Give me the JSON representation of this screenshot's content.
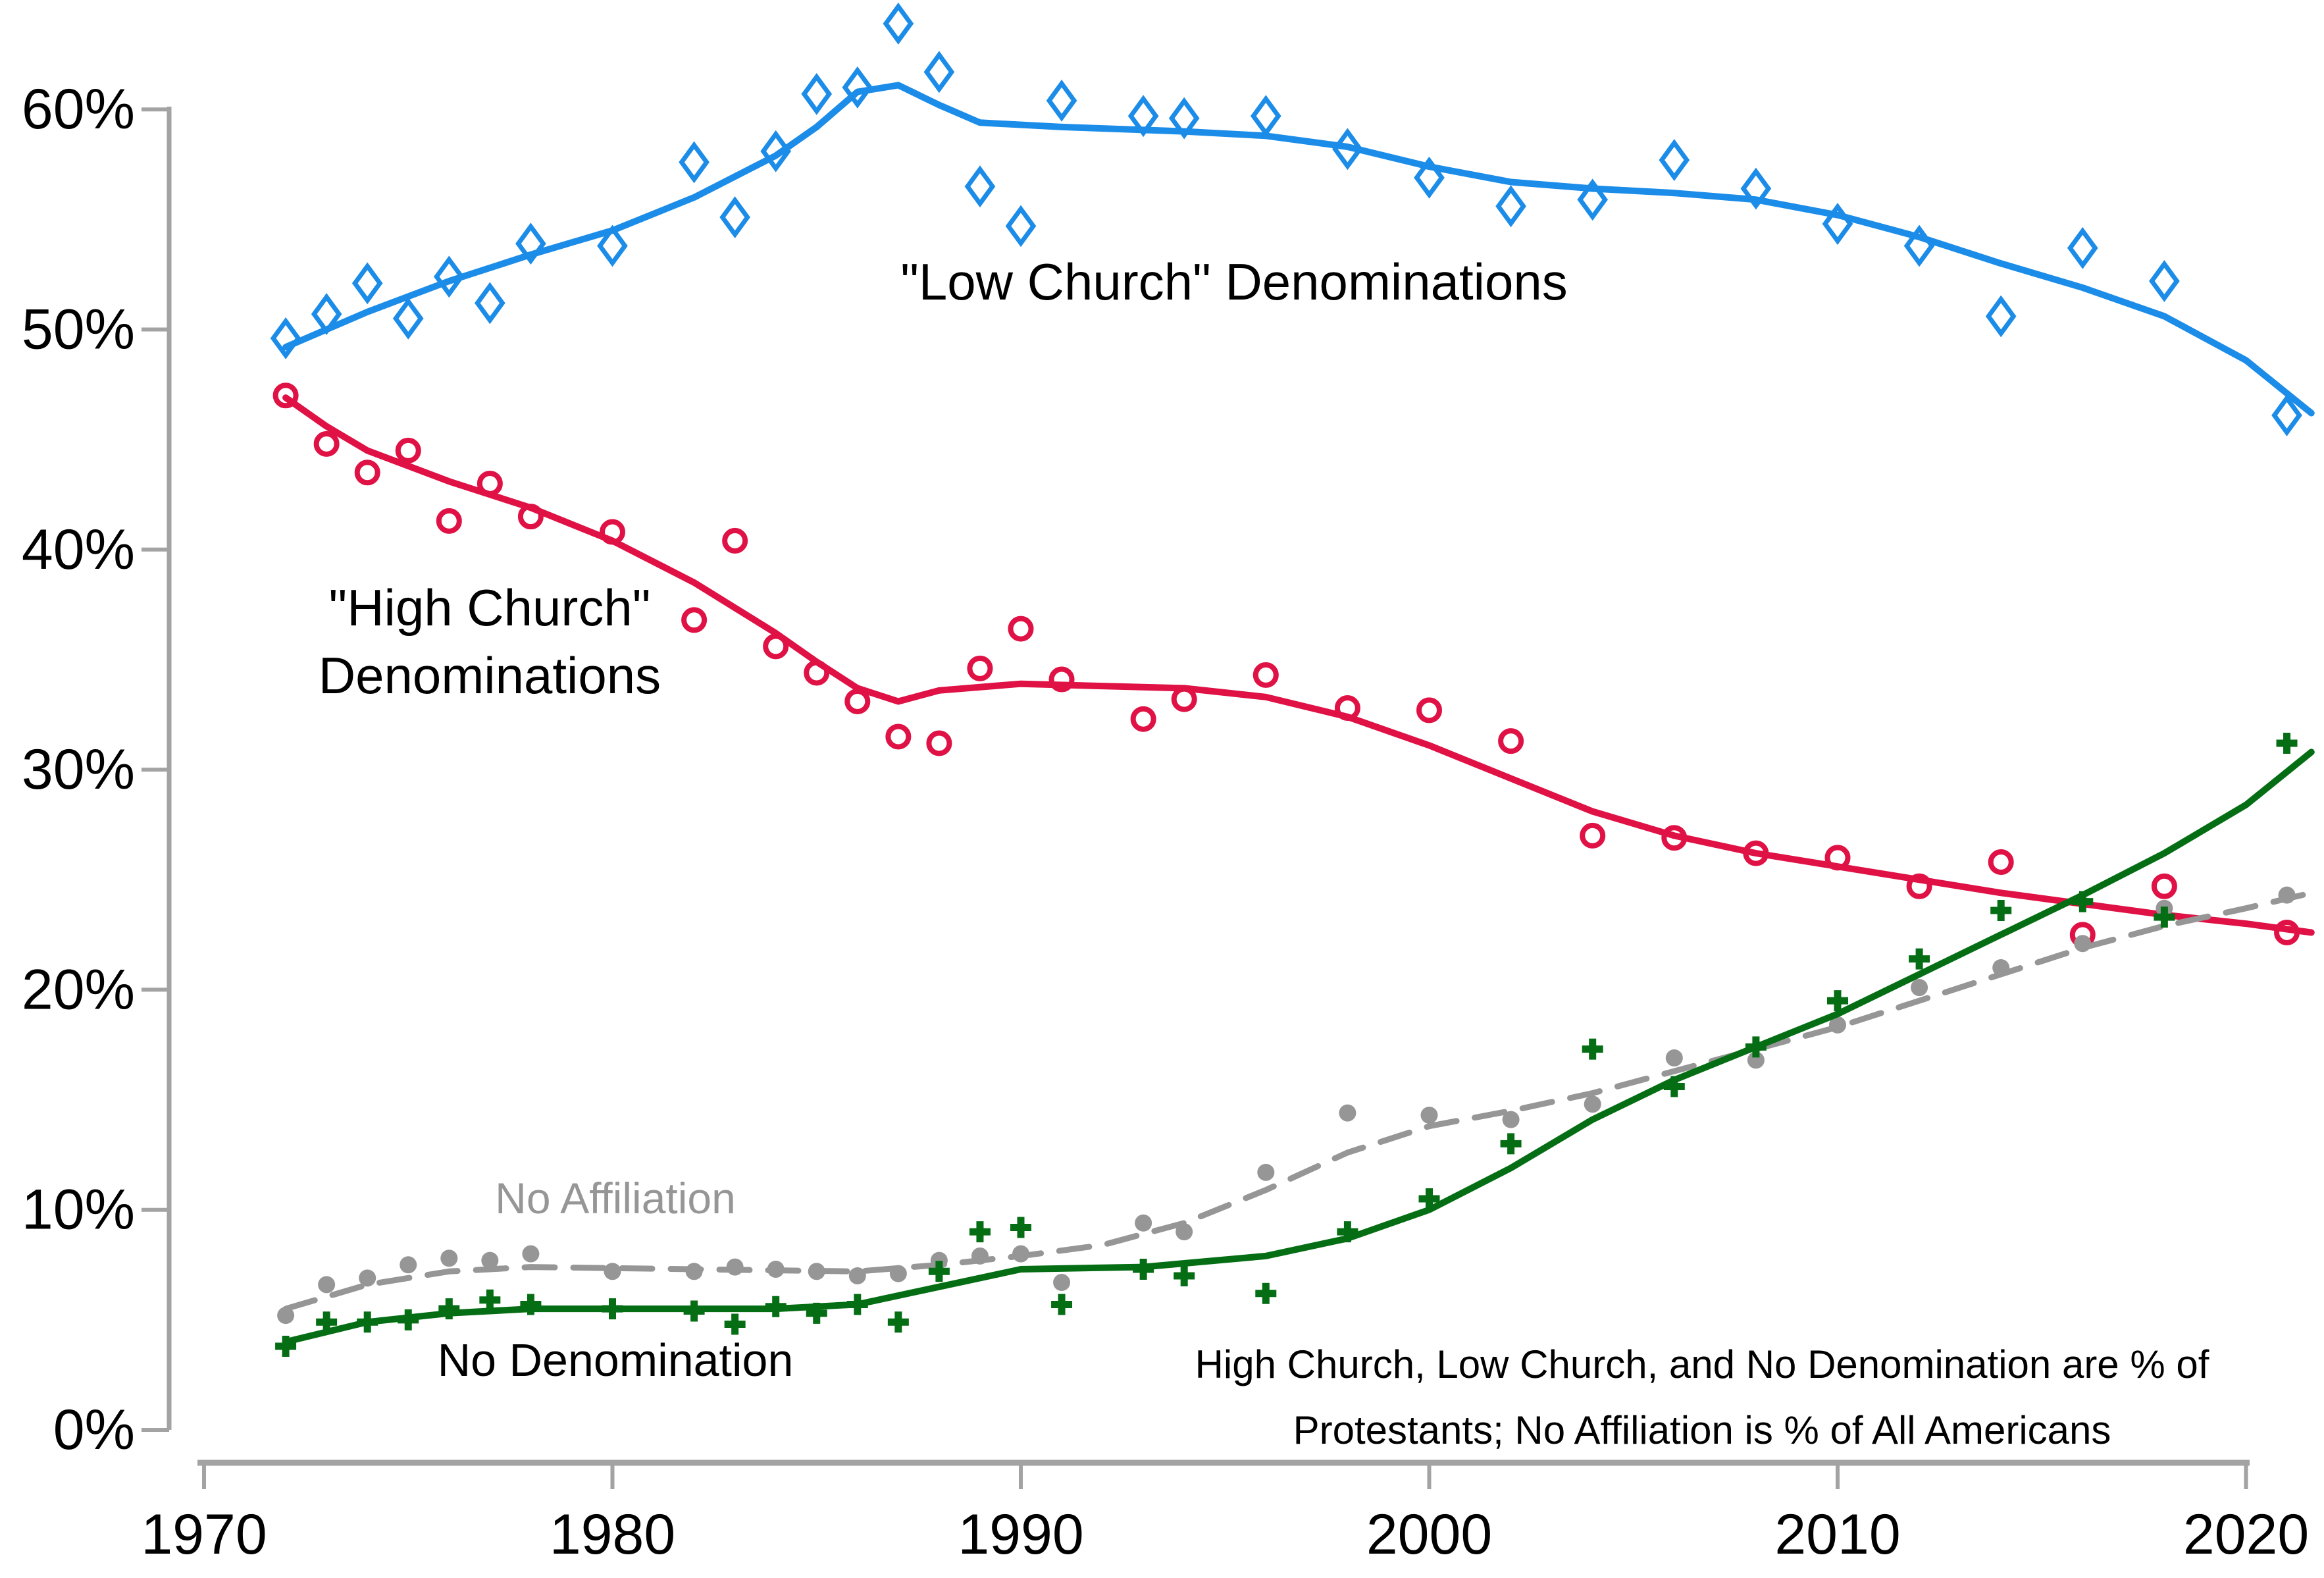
{
  "page": {
    "background": "#ffffff"
  },
  "chart_data": {
    "type": "scatter",
    "title": "",
    "subtitle": "",
    "grid": "off",
    "legend": "none (direct labels inside plot)",
    "x_axis": {
      "label": "",
      "min": 1969,
      "max": 2022,
      "ticks": [
        1970,
        1980,
        1990,
        2000,
        2010,
        2020
      ],
      "tick_labels": [
        "1970",
        "1980",
        "1990",
        "2000",
        "2010",
        "2020"
      ]
    },
    "y_axis": {
      "label": "",
      "min": 0,
      "max": 60,
      "ticks": [
        0,
        10,
        20,
        30,
        40,
        50,
        60
      ],
      "tick_labels": [
        "0%",
        "10%",
        "20%",
        "30%",
        "40%",
        "50%",
        "60%"
      ]
    },
    "survey_years": [
      1972,
      1973,
      1974,
      1975,
      1976,
      1977,
      1978,
      1980,
      1982,
      1983,
      1984,
      1985,
      1986,
      1987,
      1988,
      1989,
      1990,
      1991,
      1993,
      1994,
      1996,
      1998,
      2000,
      2002,
      2004,
      2006,
      2008,
      2010,
      2012,
      2014,
      2016,
      2018,
      2021
    ],
    "series": [
      {
        "id": "no-affiliation",
        "name": "No Affiliation",
        "color": "#969696",
        "marker": "dot",
        "line_style": "dashed",
        "label_lines": [
          "No Affiliation"
        ],
        "label": {
          "x": 935,
          "y": 1843,
          "size": 66,
          "color": "#969696"
        },
        "values": [
          5.2,
          6.6,
          6.9,
          7.5,
          7.8,
          7.7,
          8.0,
          7.2,
          7.2,
          7.4,
          7.3,
          7.2,
          7.0,
          7.1,
          7.7,
          7.9,
          8.0,
          6.7,
          9.4,
          9.0,
          11.7,
          14.4,
          14.3,
          14.1,
          14.8,
          16.9,
          16.8,
          18.4,
          20.1,
          21.0,
          22.1,
          23.7,
          24.3
        ],
        "trend": [
          [
            1972,
            5.5
          ],
          [
            1974,
            6.6
          ],
          [
            1976,
            7.2
          ],
          [
            1978,
            7.4
          ],
          [
            1982,
            7.3
          ],
          [
            1986,
            7.2
          ],
          [
            1988,
            7.5
          ],
          [
            1990,
            7.9
          ],
          [
            1992,
            8.4
          ],
          [
            1994,
            9.4
          ],
          [
            1996,
            10.9
          ],
          [
            1998,
            12.6
          ],
          [
            2000,
            13.8
          ],
          [
            2002,
            14.5
          ],
          [
            2004,
            15.3
          ],
          [
            2006,
            16.3
          ],
          [
            2008,
            17.3
          ],
          [
            2010,
            18.3
          ],
          [
            2012,
            19.5
          ],
          [
            2014,
            20.7
          ],
          [
            2016,
            21.9
          ],
          [
            2018,
            22.9
          ],
          [
            2020,
            23.7
          ],
          [
            2021.6,
            24.4
          ]
        ]
      },
      {
        "id": "no-denomination",
        "name": "No Denomination",
        "color": "#056E14",
        "marker": "plus",
        "line_style": "solid",
        "label_lines": [
          "No Denomination"
        ],
        "label": {
          "x": 935,
          "y": 2090,
          "size": 70,
          "color": "#000000"
        },
        "values": [
          3.8,
          4.9,
          4.9,
          5.0,
          5.5,
          5.9,
          5.7,
          5.5,
          5.4,
          4.8,
          5.6,
          5.3,
          5.7,
          4.9,
          7.2,
          9.0,
          9.2,
          5.7,
          7.3,
          7.0,
          6.2,
          9.0,
          10.5,
          13.0,
          17.3,
          15.6,
          17.4,
          19.5,
          21.4,
          23.6,
          24.0,
          23.3,
          31.2
        ],
        "trend": [
          [
            1972,
            4.0
          ],
          [
            1974,
            4.9
          ],
          [
            1976,
            5.3
          ],
          [
            1978,
            5.5
          ],
          [
            1982,
            5.5
          ],
          [
            1984,
            5.5
          ],
          [
            1986,
            5.7
          ],
          [
            1988,
            6.5
          ],
          [
            1990,
            7.3
          ],
          [
            1993,
            7.4
          ],
          [
            1996,
            7.9
          ],
          [
            1998,
            8.7
          ],
          [
            2000,
            10.0
          ],
          [
            2002,
            11.9
          ],
          [
            2004,
            14.1
          ],
          [
            2006,
            15.9
          ],
          [
            2008,
            17.4
          ],
          [
            2010,
            18.9
          ],
          [
            2012,
            20.7
          ],
          [
            2014,
            22.5
          ],
          [
            2016,
            24.3
          ],
          [
            2018,
            26.2
          ],
          [
            2020,
            28.4
          ],
          [
            2021.6,
            30.8
          ]
        ]
      },
      {
        "id": "high-church",
        "name": "\"High Church\" Denominations",
        "color": "#DF1145",
        "marker": "open-circle",
        "line_style": "solid",
        "label_lines": [
          "\"High Church\"",
          "Denominations"
        ],
        "label": {
          "x": 744,
          "y": 950,
          "size": 78,
          "color": "#000000",
          "line_gap": 103
        },
        "values": [
          47.0,
          44.8,
          43.5,
          44.5,
          41.3,
          43.0,
          41.5,
          40.8,
          36.8,
          40.4,
          35.6,
          34.4,
          33.1,
          31.5,
          31.2,
          34.6,
          36.4,
          34.1,
          32.3,
          33.2,
          34.3,
          32.8,
          32.7,
          31.3,
          27.0,
          26.9,
          26.2,
          26.0,
          24.7,
          25.8,
          22.5,
          24.7,
          22.6
        ],
        "trend": [
          [
            1972,
            46.9
          ],
          [
            1973,
            45.6
          ],
          [
            1974,
            44.5
          ],
          [
            1976,
            43.1
          ],
          [
            1978,
            41.9
          ],
          [
            1980,
            40.4
          ],
          [
            1982,
            38.5
          ],
          [
            1984,
            36.2
          ],
          [
            1985,
            34.9
          ],
          [
            1986,
            33.7
          ],
          [
            1987,
            33.1
          ],
          [
            1988,
            33.6
          ],
          [
            1990,
            33.9
          ],
          [
            1992,
            33.8
          ],
          [
            1994,
            33.7
          ],
          [
            1996,
            33.3
          ],
          [
            1998,
            32.4
          ],
          [
            2000,
            31.1
          ],
          [
            2002,
            29.6
          ],
          [
            2004,
            28.1
          ],
          [
            2006,
            27.0
          ],
          [
            2008,
            26.2
          ],
          [
            2010,
            25.6
          ],
          [
            2012,
            25.0
          ],
          [
            2014,
            24.4
          ],
          [
            2016,
            23.9
          ],
          [
            2018,
            23.4
          ],
          [
            2020,
            23.0
          ],
          [
            2021.6,
            22.6
          ]
        ]
      },
      {
        "id": "low-church",
        "name": "\"Low Church\" Denominations",
        "color": "#1B8CE8",
        "marker": "open-diamond",
        "line_style": "solid",
        "label_lines": [
          "\"Low Church\" Denominations"
        ],
        "label": {
          "x": 1875,
          "y": 455,
          "size": 78,
          "color": "#000000"
        },
        "values": [
          49.6,
          50.7,
          52.1,
          50.5,
          52.4,
          51.2,
          53.9,
          53.8,
          57.6,
          55.1,
          58.1,
          60.7,
          61.0,
          63.9,
          61.7,
          56.5,
          54.7,
          60.4,
          59.7,
          59.6,
          59.7,
          58.2,
          56.9,
          55.6,
          55.9,
          57.7,
          56.4,
          54.8,
          53.8,
          50.6,
          53.7,
          52.2,
          46.1
        ],
        "trend": [
          [
            1972,
            49.2
          ],
          [
            1974,
            50.8
          ],
          [
            1976,
            52.2
          ],
          [
            1978,
            53.4
          ],
          [
            1980,
            54.5
          ],
          [
            1982,
            56.0
          ],
          [
            1984,
            57.9
          ],
          [
            1985,
            59.2
          ],
          [
            1986,
            60.8
          ],
          [
            1987,
            61.1
          ],
          [
            1988,
            60.2
          ],
          [
            1989,
            59.4
          ],
          [
            1991,
            59.2
          ],
          [
            1994,
            59.0
          ],
          [
            1996,
            58.8
          ],
          [
            1998,
            58.3
          ],
          [
            2000,
            57.4
          ],
          [
            2002,
            56.7
          ],
          [
            2004,
            56.4
          ],
          [
            2006,
            56.2
          ],
          [
            2008,
            55.9
          ],
          [
            2010,
            55.2
          ],
          [
            2012,
            54.2
          ],
          [
            2014,
            53.0
          ],
          [
            2016,
            51.9
          ],
          [
            2018,
            50.6
          ],
          [
            2020,
            48.6
          ],
          [
            2021.6,
            46.2
          ]
        ]
      }
    ],
    "footnote": [
      "High Church, Low Church, and No Denomination are % of",
      "Protestants; No Affiliation is % of All Americans"
    ],
    "footnote_pos": {
      "x": 2586,
      "y1": 2093,
      "y2": 2193,
      "size": 60
    },
    "colors": {
      "axis": "#A3A3A3",
      "text": "#000000"
    }
  }
}
